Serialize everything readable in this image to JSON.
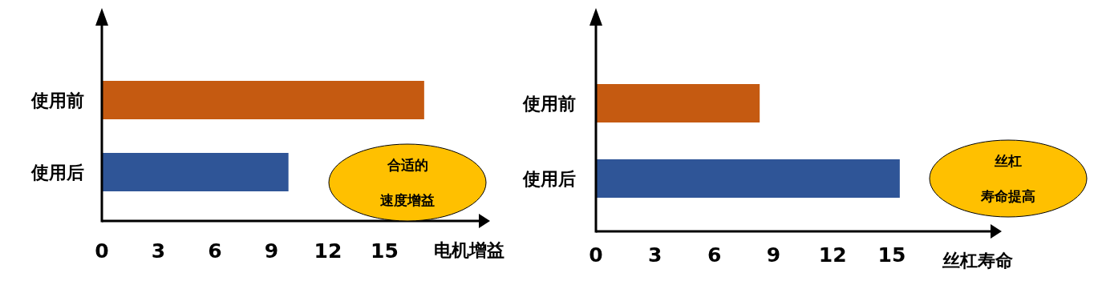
{
  "chart_data": [
    {
      "type": "bar",
      "orientation": "horizontal",
      "categories": [
        "使用前",
        "使用后"
      ],
      "values": [
        17.1,
        9.9
      ],
      "colors": [
        "#c55a11",
        "#2f5597"
      ],
      "xlim": [
        0,
        20
      ],
      "xticks": [
        0,
        3,
        6,
        9,
        12,
        15
      ],
      "xlabel": "电机增益",
      "annotations": [
        "合适的",
        "速度增益"
      ]
    },
    {
      "type": "bar",
      "orientation": "horizontal",
      "categories": [
        "使用前",
        "使用后"
      ],
      "values": [
        8.3,
        15.4
      ],
      "colors": [
        "#c55a11",
        "#2f5597"
      ],
      "xlim": [
        0,
        20
      ],
      "xticks": [
        0,
        3,
        6,
        9,
        12,
        15
      ],
      "xlabel": "丝杠寿命",
      "annotations": [
        "丝杠",
        "寿命提高"
      ]
    }
  ]
}
